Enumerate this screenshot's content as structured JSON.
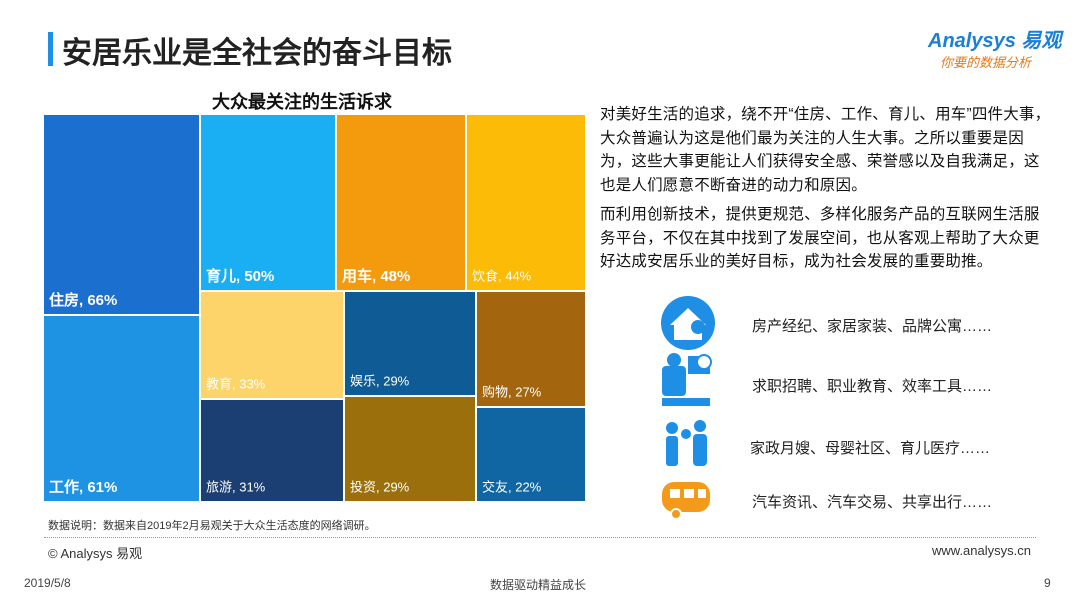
{
  "header": {
    "title": "安居乐业是全社会的奋斗目标",
    "logo": "Analysys 易观",
    "slogan": "你要的数据分析"
  },
  "chart_data": {
    "type": "treemap",
    "title": "大众最关注的生活诉求",
    "values": [
      66,
      61,
      50,
      48,
      44,
      33,
      31,
      29,
      29,
      27,
      22
    ],
    "value_labels": [
      "住房, 66%",
      "工作, 61%",
      "育儿, 50%",
      "用车, 48%",
      "饮食, 44%",
      "教育, 33%",
      "旅游, 31%",
      "娱乐, 29%",
      "投资, 29%",
      "购物, 27%",
      "交友, 22%"
    ],
    "colors": [
      "#1b6fcf",
      "#1e93e3",
      "#1aaef3",
      "#f49a0d",
      "#fbbb06",
      "#fcd46a",
      "#1b3f72",
      "#0e5b96",
      "#9b700c",
      "#a3660f",
      "#1066a3"
    ]
  },
  "text": {
    "paragraphs": [
      "对美好生活的追求，绕不开“住房、工作、育儿、用车”四件大事，大众普遍认为这是他们最为关注的人生大事。之所以重要是因为，这些大事更能让人们获得安全感、荣誉感以及自我满足，这也是人们愿意不断奋进的动力和原因。",
      "而利用创新技术，提供更规范、多样化服务产品的互联网生活服务平台，不仅在其中找到了发展空间，也从客观上帮助了大众更好达成安居乐业的美好目标，成为社会发展的重要助推。"
    ],
    "items": [
      "房产经纪、家居家装、品牌公寓……",
      "求职招聘、职业教育、效率工具……",
      "家政月嫂、母婴社区、育儿医疗……",
      "汽车资讯、汽车交易、共享出行……"
    ]
  },
  "footer": {
    "note": "数据说明：数据来自2019年2月易观关于大众生活态度的网络调研。",
    "copyright": "© Analysys 易观",
    "website": "www.analysys.cn",
    "date": "2019/5/8",
    "motto": "数据驱动精益成长",
    "page": "9"
  }
}
